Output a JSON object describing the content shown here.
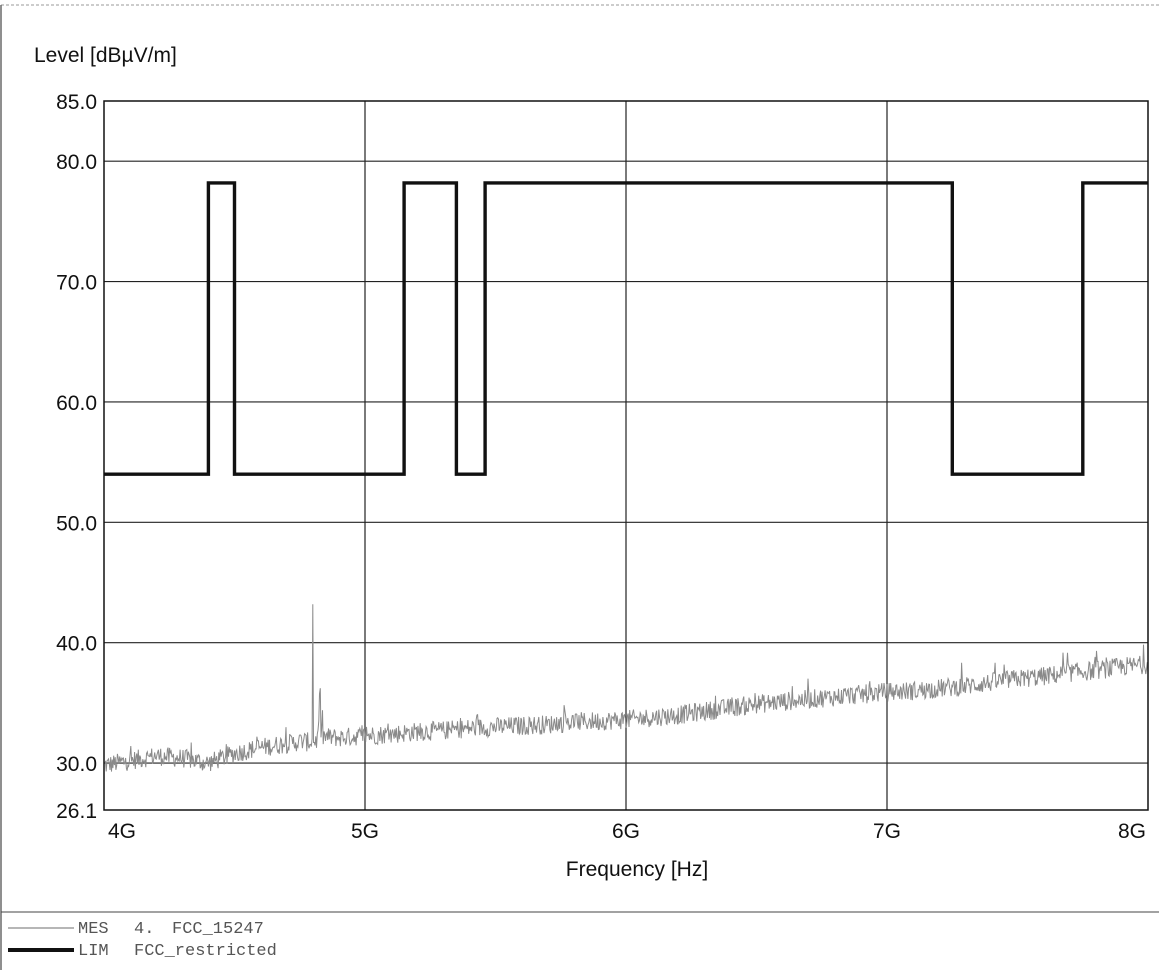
{
  "chart_data": {
    "type": "line",
    "ylabel": "Level [dBµV/m]",
    "xlabel": "Frequency [Hz]",
    "xlim": [
      4000000000,
      8000000000
    ],
    "ylim": [
      26.1,
      85.0
    ],
    "x_ticks": [
      {
        "value": 4000000000,
        "label": "4G"
      },
      {
        "value": 5000000000,
        "label": "5G"
      },
      {
        "value": 6000000000,
        "label": "6G"
      },
      {
        "value": 7000000000,
        "label": "7G"
      },
      {
        "value": 8000000000,
        "label": "8G"
      }
    ],
    "y_ticks": [
      {
        "value": 85.0,
        "label": "85.0"
      },
      {
        "value": 80.0,
        "label": "80.0"
      },
      {
        "value": 70.0,
        "label": "70.0"
      },
      {
        "value": 60.0,
        "label": "60.0"
      },
      {
        "value": 50.0,
        "label": "50.0"
      },
      {
        "value": 40.0,
        "label": "40.0"
      },
      {
        "value": 30.0,
        "label": "30.0"
      },
      {
        "value": 26.1,
        "label": "26.1"
      }
    ],
    "grid": true,
    "legend_position": "bottom-left",
    "series": [
      {
        "id": "lim",
        "legend_tag": "LIM",
        "name": "FCC_restricted",
        "color": "#111111",
        "style": "step",
        "x": [
          4000000000,
          4400000000,
          4400000000,
          4500000000,
          4500000000,
          5150000000,
          5150000000,
          5350000000,
          5350000000,
          5460000000,
          5460000000,
          7250000000,
          7250000000,
          7750000000,
          7750000000,
          8000000000
        ],
        "y": [
          54.0,
          54.0,
          78.2,
          78.2,
          54.0,
          54.0,
          78.2,
          78.2,
          54.0,
          54.0,
          78.2,
          78.2,
          54.0,
          54.0,
          78.2,
          78.2
        ]
      },
      {
        "id": "mes",
        "legend_tag": "MES",
        "legend_index": "4.",
        "name": "FCC_15247",
        "color": "#8a8a8a",
        "style": "noisy",
        "x": [
          4000000000,
          4100000000,
          4200000000,
          4300000000,
          4400000000,
          4500000000,
          4600000000,
          4700000000,
          4780000000,
          4800000000,
          4820000000,
          4900000000,
          5000000000,
          5100000000,
          5200000000,
          5300000000,
          5400000000,
          5500000000,
          5600000000,
          5700000000,
          5800000000,
          5900000000,
          6000000000,
          6100000000,
          6200000000,
          6300000000,
          6400000000,
          6500000000,
          6600000000,
          6700000000,
          6800000000,
          6900000000,
          7000000000,
          7100000000,
          7200000000,
          7300000000,
          7400000000,
          7500000000,
          7600000000,
          7700000000,
          7800000000,
          7900000000,
          8000000000
        ],
        "y": [
          29.8,
          30.2,
          30.6,
          30.4,
          30.0,
          30.8,
          31.3,
          31.6,
          31.9,
          43.2,
          32.2,
          32.1,
          32.3,
          32.4,
          32.6,
          32.7,
          32.9,
          33.0,
          33.1,
          33.2,
          33.4,
          33.5,
          33.6,
          33.8,
          34.0,
          34.3,
          34.6,
          34.9,
          35.1,
          35.3,
          35.5,
          35.7,
          35.9,
          36.0,
          36.2,
          36.4,
          36.7,
          37.0,
          37.2,
          37.5,
          37.7,
          38.0,
          38.2
        ]
      }
    ]
  }
}
